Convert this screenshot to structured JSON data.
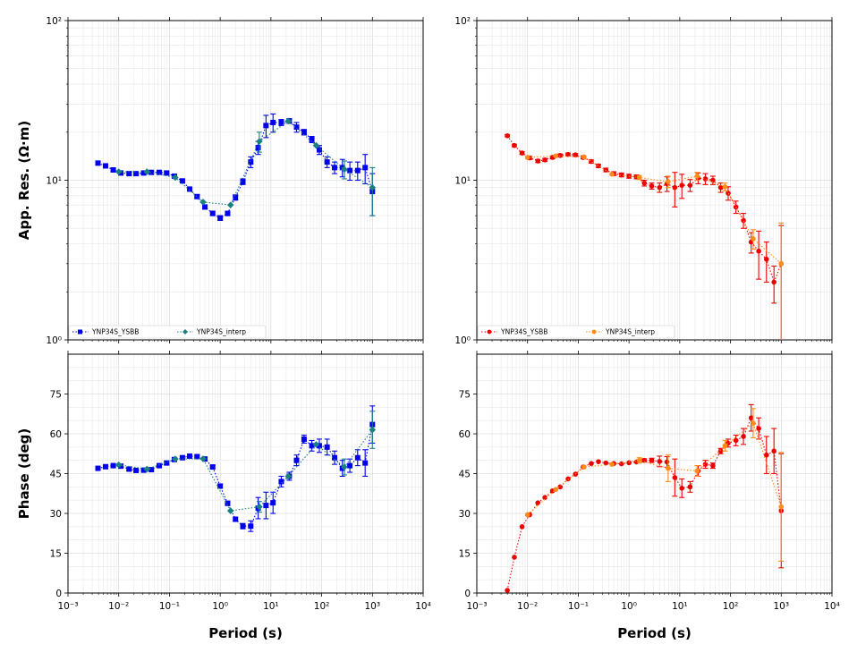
{
  "chart_data": [
    {
      "type": "scatter",
      "panel": "top-left",
      "ylabel": "App. Res. (Ω·m)",
      "xlabel": "",
      "xscale": "log",
      "yscale": "log",
      "xlim": [
        0.001,
        10000
      ],
      "ylim": [
        1,
        100
      ],
      "grid": true,
      "legend": "lower-left",
      "series": [
        {
          "name": "YNP34S_YSBB",
          "color": "#0000ee",
          "marker": "square",
          "line": "dotted",
          "x": [
            0.0039,
            0.0055,
            0.0078,
            0.011,
            0.016,
            0.022,
            0.031,
            0.044,
            0.063,
            0.088,
            0.125,
            0.18,
            0.25,
            0.35,
            0.5,
            0.71,
            1.0,
            1.4,
            2.0,
            2.8,
            4.0,
            5.6,
            8.0,
            11,
            16,
            23,
            32,
            45,
            64,
            90,
            128,
            180,
            256,
            360,
            512,
            720,
            1000
          ],
          "y": [
            12.8,
            12.3,
            11.6,
            11.1,
            11.0,
            11.0,
            11.1,
            11.2,
            11.2,
            11.1,
            10.6,
            9.9,
            8.8,
            7.9,
            6.8,
            6.2,
            5.8,
            6.2,
            7.8,
            9.8,
            13.0,
            16.0,
            22.0,
            23.0,
            23.0,
            23.5,
            21.5,
            20.0,
            18.0,
            15.5,
            13.0,
            12.0,
            12.0,
            11.5,
            11.5,
            12.0,
            8.5
          ],
          "err": [
            0.3,
            0.3,
            0.3,
            0.2,
            0.2,
            0.2,
            0.2,
            0.2,
            0.2,
            0.2,
            0.2,
            0.2,
            0.2,
            0.2,
            0.2,
            0.2,
            0.2,
            0.2,
            0.3,
            0.4,
            1.0,
            1.5,
            3.5,
            3.0,
            1.0,
            0.8,
            1.5,
            0.8,
            0.8,
            1.0,
            1.0,
            1.0,
            1.5,
            1.5,
            1.5,
            2.5,
            2.5
          ]
        },
        {
          "name": "YNP34S_interp",
          "color": "#1a8080",
          "marker": "diamond",
          "line": "dotted",
          "x": [
            0.01,
            0.036,
            0.13,
            0.46,
            1.6,
            5.9,
            22,
            78,
            280,
            1000
          ],
          "y": [
            11.3,
            11.3,
            10.4,
            7.3,
            7.0,
            17.5,
            23.5,
            16.5,
            11.7,
            9.0
          ],
          "err": [
            0,
            0,
            0,
            0,
            0,
            2.5,
            0,
            0,
            1.5,
            3.0
          ]
        }
      ]
    },
    {
      "type": "scatter",
      "panel": "top-right",
      "xscale": "log",
      "yscale": "log",
      "xlim": [
        0.001,
        10000
      ],
      "ylim": [
        1,
        100
      ],
      "grid": true,
      "legend": "lower-left",
      "series": [
        {
          "name": "YNP34S_YSBB",
          "color": "#ee0000",
          "marker": "circle",
          "line": "dotted",
          "x": [
            0.004,
            0.0055,
            0.0078,
            0.011,
            0.016,
            0.022,
            0.031,
            0.044,
            0.063,
            0.088,
            0.125,
            0.18,
            0.25,
            0.35,
            0.5,
            0.71,
            1.0,
            1.4,
            2.0,
            2.8,
            4.0,
            5.6,
            8.0,
            11,
            16,
            23,
            32,
            45,
            64,
            90,
            128,
            180,
            256,
            360,
            512,
            720,
            1000
          ],
          "y": [
            19.0,
            16.5,
            14.8,
            13.8,
            13.2,
            13.4,
            13.9,
            14.3,
            14.5,
            14.4,
            13.9,
            13.1,
            12.3,
            11.6,
            11.0,
            10.8,
            10.6,
            10.5,
            9.6,
            9.2,
            9.0,
            9.5,
            9.0,
            9.3,
            9.3,
            10.3,
            10.2,
            10.0,
            9.0,
            8.3,
            6.8,
            5.6,
            4.1,
            3.6,
            3.2,
            2.3,
            3.0
          ],
          "err": [
            0.3,
            0.3,
            0.3,
            0.3,
            0.3,
            0.3,
            0.3,
            0.3,
            0.3,
            0.3,
            0.3,
            0.3,
            0.3,
            0.3,
            0.3,
            0.3,
            0.3,
            0.3,
            0.4,
            0.4,
            0.6,
            1.0,
            2.2,
            1.6,
            0.8,
            0.8,
            0.8,
            0.6,
            0.6,
            0.8,
            0.6,
            0.6,
            0.6,
            1.2,
            0.9,
            0.6,
            2.2
          ]
        },
        {
          "name": "YNP34S_interp",
          "color": "#ff8c1a",
          "marker": "circle",
          "line": "dotted",
          "x": [
            0.01,
            0.036,
            0.13,
            0.46,
            1.6,
            5.9,
            22,
            78,
            280,
            1000
          ],
          "y": [
            13.9,
            14.2,
            14.0,
            10.9,
            10.4,
            9.8,
            10.6,
            9.1,
            4.3,
            3.0
          ],
          "err": [
            0,
            0,
            0,
            0,
            0.3,
            0.8,
            0.6,
            0.5,
            0.6,
            2.4
          ]
        }
      ]
    },
    {
      "type": "scatter",
      "panel": "bottom-left",
      "ylabel": "Phase (deg)",
      "xlabel": "Period (s)",
      "xscale": "log",
      "yscale": "linear",
      "xlim": [
        0.001,
        10000
      ],
      "ylim": [
        0,
        90
      ],
      "yticks": [
        0,
        15,
        30,
        45,
        60,
        75
      ],
      "grid": true,
      "series": [
        {
          "name": "YNP34S_YSBB",
          "color": "#0000ee",
          "marker": "square",
          "line": "dotted",
          "x": [
            0.0039,
            0.0055,
            0.0078,
            0.011,
            0.016,
            0.022,
            0.031,
            0.044,
            0.063,
            0.088,
            0.125,
            0.18,
            0.25,
            0.35,
            0.5,
            0.71,
            1.0,
            1.4,
            2.0,
            2.8,
            4.0,
            5.6,
            8.0,
            11,
            16,
            23,
            32,
            45,
            64,
            90,
            128,
            180,
            256,
            360,
            512,
            720,
            1000
          ],
          "y": [
            47.0,
            47.6,
            48.0,
            47.8,
            46.7,
            46.2,
            46.3,
            46.5,
            48.0,
            49.0,
            50.3,
            51.0,
            51.6,
            51.4,
            50.5,
            47.5,
            40.3,
            33.8,
            27.8,
            25.2,
            25.2,
            32.0,
            33.0,
            34.0,
            42.0,
            44.0,
            50.0,
            58.0,
            55.5,
            55.5,
            55.0,
            51.0,
            47.0,
            48.0,
            51.0,
            49.0,
            63.5
          ],
          "err": [
            0.5,
            0.5,
            0.5,
            0.5,
            0.5,
            0.5,
            0.5,
            0.5,
            0.5,
            0.5,
            0.5,
            0.5,
            0.5,
            0.5,
            0.6,
            0.6,
            0.8,
            0.8,
            0.8,
            1.0,
            2.0,
            4.0,
            5.0,
            4.0,
            2.0,
            1.5,
            2.0,
            1.5,
            2.0,
            2.5,
            3.0,
            2.5,
            3.0,
            2.5,
            3.0,
            5.0,
            7.0
          ]
        },
        {
          "name": "YNP34S_interp",
          "color": "#1a8080",
          "marker": "diamond",
          "line": "dotted",
          "x": [
            0.01,
            0.036,
            0.13,
            0.46,
            1.6,
            5.9,
            22,
            78,
            280,
            1000
          ],
          "y": [
            48.3,
            46.7,
            50.5,
            50.6,
            31.0,
            32.5,
            44.0,
            56.0,
            47.5,
            61.5
          ],
          "err": [
            0,
            0,
            0,
            0,
            0,
            2.0,
            0,
            0,
            3.0,
            7.0
          ]
        }
      ]
    },
    {
      "type": "scatter",
      "panel": "bottom-right",
      "xlabel": "Period (s)",
      "xscale": "log",
      "yscale": "linear",
      "xlim": [
        0.001,
        10000
      ],
      "ylim": [
        0,
        90
      ],
      "yticks": [
        0,
        15,
        30,
        45,
        60,
        75
      ],
      "grid": true,
      "series": [
        {
          "name": "YNP34S_YSBB",
          "color": "#ee0000",
          "marker": "circle",
          "line": "dotted",
          "x": [
            0.004,
            0.0055,
            0.0078,
            0.011,
            0.016,
            0.022,
            0.031,
            0.044,
            0.063,
            0.088,
            0.125,
            0.18,
            0.25,
            0.35,
            0.5,
            0.71,
            1.0,
            1.4,
            2.0,
            2.8,
            4.0,
            5.6,
            8.0,
            11,
            16,
            23,
            32,
            45,
            64,
            90,
            128,
            180,
            256,
            360,
            512,
            720,
            1000
          ],
          "y": [
            1.0,
            13.5,
            25.0,
            29.5,
            34.0,
            36.0,
            38.5,
            40.0,
            43.0,
            44.8,
            47.5,
            48.8,
            49.5,
            49.0,
            48.8,
            48.7,
            49.1,
            49.4,
            50.0,
            50.0,
            49.6,
            49.4,
            43.5,
            39.5,
            40.0,
            46.0,
            48.5,
            48.0,
            53.5,
            56.5,
            57.5,
            59.0,
            66.0,
            62.0,
            52.0,
            53.5,
            31.0
          ],
          "err": [
            0,
            0,
            0,
            0,
            0,
            0,
            0,
            0,
            0,
            0,
            0,
            0,
            0,
            0,
            0,
            0,
            0,
            0,
            0.6,
            0.8,
            2.0,
            2.0,
            7.0,
            3.5,
            2.0,
            2.0,
            1.5,
            1.0,
            1.0,
            1.5,
            2.0,
            3.0,
            5.0,
            4.0,
            7.0,
            8.5,
            21.5
          ]
        },
        {
          "name": "YNP34S_interp",
          "color": "#ff8c1a",
          "marker": "circle",
          "line": "dotted",
          "x": [
            0.01,
            0.036,
            0.13,
            0.46,
            1.6,
            5.9,
            22,
            78,
            280,
            1000
          ],
          "y": [
            29.5,
            39.0,
            47.5,
            48.5,
            50.0,
            47.0,
            46.0,
            55.5,
            64.0,
            32.5
          ],
          "err": [
            0,
            0,
            0,
            0,
            1.0,
            5.0,
            2.0,
            2.0,
            5.5,
            20.5
          ]
        }
      ]
    }
  ]
}
